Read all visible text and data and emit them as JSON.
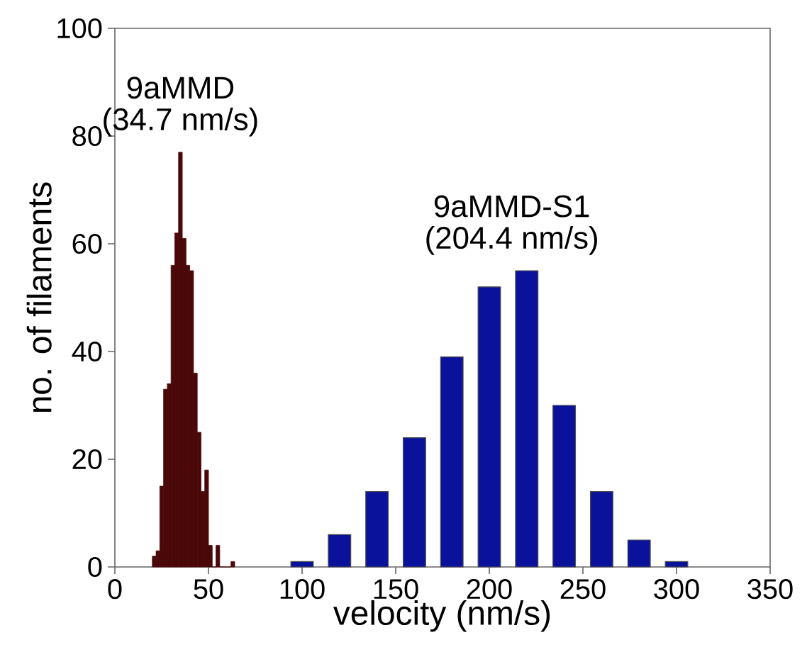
{
  "chart_data": {
    "type": "histogram",
    "xlabel": "velocity (nm/s)",
    "ylabel": "no. of filaments",
    "series": [
      {
        "color": "#4a0808",
        "bins": [
          20,
          22,
          24,
          26,
          28,
          30,
          32,
          34,
          36,
          38,
          40,
          42,
          44,
          46,
          48,
          50,
          52,
          54,
          56,
          58,
          60,
          62,
          64
        ],
        "values": [
          2,
          3,
          15,
          33,
          34,
          56,
          62,
          77,
          61,
          56,
          55,
          36,
          25,
          14,
          18,
          4,
          0,
          4,
          0,
          0,
          0,
          1
        ]
      },
      {
        "type": "bar",
        "color": "#0a129c",
        "x": [
          100,
          120,
          140,
          160,
          180,
          200,
          220,
          240,
          260,
          280,
          300
        ],
        "values": [
          1,
          6,
          14,
          24,
          39,
          52,
          55,
          30,
          14,
          5,
          1
        ]
      }
    ],
    "annotations": [
      "9aMMD",
      "(34.7 nm/s)",
      "9aMMD-S1",
      "(204.4 nm/s)"
    ],
    "xlim": [
      0,
      350
    ],
    "xticks": [
      0,
      50,
      100,
      150,
      200,
      250,
      300,
      350
    ],
    "ylim": [
      0,
      100
    ],
    "yticks": [
      0,
      20,
      40,
      60,
      80,
      100
    ]
  }
}
